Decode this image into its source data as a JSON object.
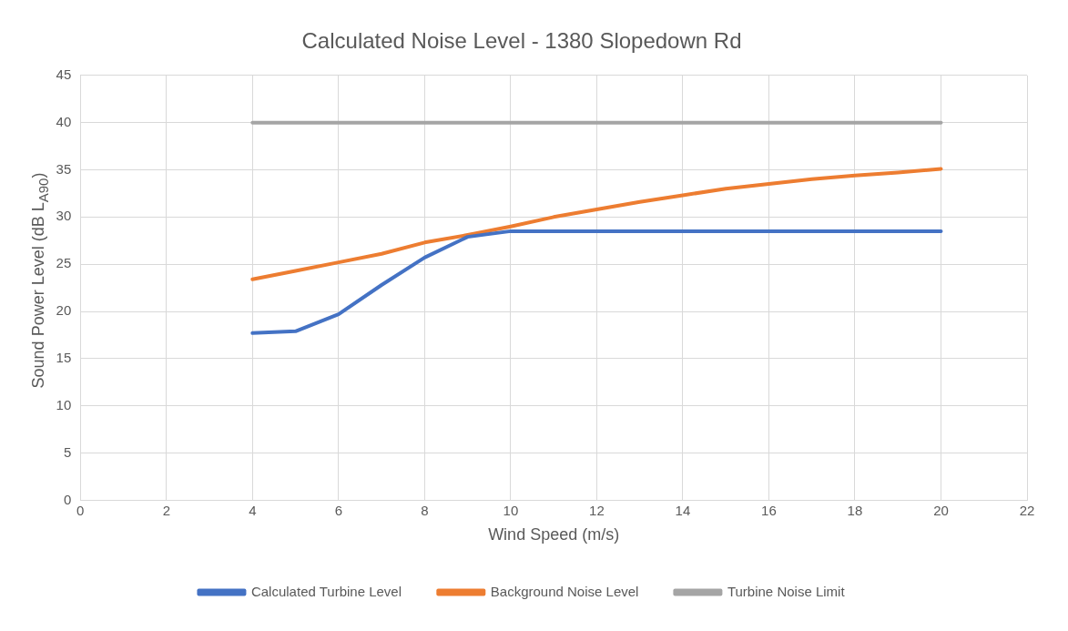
{
  "chart_data": {
    "type": "line",
    "title": "Calculated Noise Level - 1380 Slopedown Rd",
    "xlabel": "Wind Speed (m/s)",
    "ylabel": "Sound Power Level (dB L$_{A90}$)",
    "x": [
      4,
      5,
      6,
      7,
      8,
      9,
      10,
      11,
      12,
      13,
      14,
      15,
      16,
      17,
      18,
      19,
      20
    ],
    "series": [
      {
        "name": "Calculated Turbine Level",
        "color": "#4472c4",
        "values": [
          17.7,
          17.9,
          19.7,
          22.8,
          25.7,
          27.9,
          28.5,
          28.5,
          28.5,
          28.5,
          28.5,
          28.5,
          28.5,
          28.5,
          28.5,
          28.5,
          28.5
        ]
      },
      {
        "name": "Background Noise Level",
        "color": "#ed7d31",
        "values": [
          23.4,
          24.3,
          25.2,
          26.1,
          27.3,
          28.1,
          29.0,
          30.0,
          30.8,
          31.6,
          32.3,
          33.0,
          33.5,
          34.0,
          34.4,
          34.7,
          35.1
        ]
      },
      {
        "name": "Turbine Noise Limit",
        "color": "#a5a5a5",
        "values": [
          40,
          40,
          40,
          40,
          40,
          40,
          40,
          40,
          40,
          40,
          40,
          40,
          40,
          40,
          40,
          40,
          40
        ]
      }
    ],
    "xlim": [
      0,
      22
    ],
    "xticks": [
      0,
      2,
      4,
      6,
      8,
      10,
      12,
      14,
      16,
      18,
      20,
      22
    ],
    "ylim": [
      0,
      45
    ],
    "yticks": [
      0,
      5,
      10,
      15,
      20,
      25,
      30,
      35,
      40,
      45
    ],
    "grid": true,
    "legend": "bottom",
    "marker": "none",
    "line_style": "solid"
  }
}
